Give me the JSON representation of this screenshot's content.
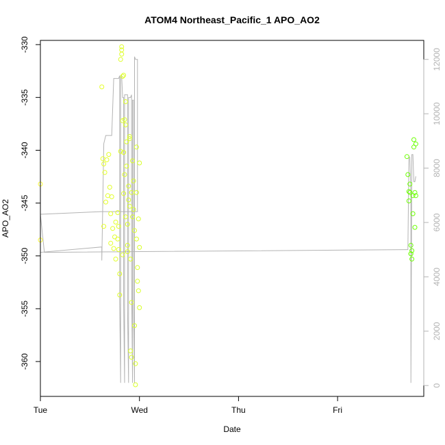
{
  "chart_data": {
    "type": "scatter",
    "title": "ATOM4 Northeast_Pacific_1 APO_AO2",
    "xlabel": "Date",
    "ylabel": "APO_AO2",
    "x_unit": "days since Tue 00:00",
    "xlim": [
      0.0,
      3.87
    ],
    "ylim": [
      -363.3,
      -329.6
    ],
    "x_ticks": [
      {
        "value": 0,
        "label": "Tue"
      },
      {
        "value": 1,
        "label": "Wed"
      },
      {
        "value": 2,
        "label": "Thu"
      },
      {
        "value": 3,
        "label": "Fri"
      }
    ],
    "y_ticks": [
      -360,
      -355,
      -350,
      -345,
      -340,
      -335,
      -330
    ],
    "y2_ticks": [
      0,
      2000,
      4000,
      6000,
      8000,
      10000,
      12000
    ],
    "y2lim": [
      -400,
      12700
    ],
    "colors": {
      "line": "#b3b3b3",
      "right_axis": "#b3b3b3",
      "point_low": "#ffff33",
      "point_high": "#66ff00"
    },
    "series": [
      {
        "kind": "points",
        "values": [
          [
            0.0,
            -343.2
          ],
          [
            0.0,
            -348.5
          ],
          [
            0.62,
            -334.0
          ],
          [
            0.63,
            -340.8
          ],
          [
            0.64,
            -341.3
          ],
          [
            0.64,
            -347.2
          ],
          [
            0.65,
            -342.1
          ],
          [
            0.66,
            -344.9
          ],
          [
            0.67,
            -340.9
          ],
          [
            0.68,
            -344.3
          ],
          [
            0.69,
            -340.4
          ],
          [
            0.7,
            -343.5
          ],
          [
            0.71,
            -346.0
          ],
          [
            0.71,
            -348.8
          ],
          [
            0.72,
            -344.4
          ],
          [
            0.73,
            -347.4
          ],
          [
            0.74,
            -349.3
          ],
          [
            0.75,
            -348.2
          ],
          [
            0.76,
            -346.8
          ],
          [
            0.76,
            -350.3
          ],
          [
            0.78,
            -345.9
          ],
          [
            0.78,
            -348.4
          ],
          [
            0.79,
            -349.4
          ],
          [
            0.8,
            -351.7
          ],
          [
            0.8,
            -353.7
          ],
          [
            0.81,
            -340.1
          ],
          [
            0.81,
            -331.4
          ],
          [
            0.82,
            -330.2
          ],
          [
            0.82,
            -330.5
          ],
          [
            0.82,
            -330.9
          ],
          [
            0.83,
            -333.0
          ],
          [
            0.83,
            -337.2
          ],
          [
            0.84,
            -340.2
          ],
          [
            0.84,
            -344.1
          ],
          [
            0.85,
            -337.1
          ],
          [
            0.85,
            -342.3
          ],
          [
            0.86,
            -346.3
          ],
          [
            0.86,
            -337.6
          ],
          [
            0.87,
            -339.2
          ],
          [
            0.87,
            -341.5
          ],
          [
            0.88,
            -347.0
          ],
          [
            0.88,
            -349.6
          ],
          [
            0.89,
            -343.4
          ],
          [
            0.89,
            -344.7
          ],
          [
            0.9,
            -338.9
          ],
          [
            0.9,
            -345.3
          ],
          [
            0.91,
            -350.3
          ],
          [
            0.91,
            -359.0
          ],
          [
            0.92,
            -354.4
          ],
          [
            0.93,
            -346.3
          ],
          [
            0.93,
            -341.0
          ],
          [
            0.94,
            -345.6
          ],
          [
            0.95,
            -347.6
          ],
          [
            0.95,
            -356.6
          ],
          [
            0.96,
            -360.2
          ],
          [
            0.96,
            -362.2
          ],
          [
            0.97,
            -348.4
          ],
          [
            0.97,
            -344.0
          ],
          [
            0.98,
            -351.1
          ],
          [
            0.98,
            -352.4
          ],
          [
            0.99,
            -353.3
          ],
          [
            1.0,
            -341.2
          ],
          [
            1.0,
            -354.9
          ],
          [
            1.0,
            -349.2
          ],
          [
            0.99,
            -346.5
          ],
          [
            0.9,
            -338.7
          ],
          [
            0.92,
            -344.0
          ],
          [
            0.86,
            -335.4
          ],
          [
            0.84,
            -332.9
          ],
          [
            0.94,
            -342.9
          ],
          [
            0.97,
            -339.7
          ],
          [
            0.88,
            -349.0
          ],
          [
            0.92,
            -359.6
          ],
          [
            0.79,
            -347.2
          ],
          [
            0.83,
            -349.9
          ],
          [
            3.7,
            -340.6
          ],
          [
            3.71,
            -342.3
          ],
          [
            3.72,
            -344.8
          ],
          [
            3.73,
            -343.2
          ],
          [
            3.73,
            -344.0
          ],
          [
            3.74,
            -349.0
          ],
          [
            3.74,
            -349.8
          ],
          [
            3.75,
            -350.3
          ],
          [
            3.75,
            -349.5
          ],
          [
            3.76,
            -346.0
          ],
          [
            3.76,
            -344.3
          ],
          [
            3.77,
            -339.7
          ],
          [
            3.77,
            -339.0
          ],
          [
            3.78,
            -347.3
          ],
          [
            3.78,
            -344.0
          ],
          [
            3.79,
            -339.4
          ],
          [
            3.79,
            -344.3
          ],
          [
            3.72,
            -343.9
          ],
          [
            3.74,
            -349.8
          ]
        ]
      },
      {
        "kind": "line",
        "axis": "right",
        "values": [
          [
            0.0,
            5900
          ],
          [
            0.0,
            4900
          ],
          [
            0.62,
            5100
          ],
          [
            0.62,
            4600
          ],
          [
            0.64,
            8900
          ],
          [
            0.66,
            9200
          ],
          [
            0.68,
            9200
          ],
          [
            0.7,
            9200
          ],
          [
            0.72,
            9200
          ],
          [
            0.74,
            11300
          ],
          [
            0.76,
            11300
          ],
          [
            0.77,
            11300
          ],
          [
            0.79,
            11300
          ],
          [
            0.8,
            11400
          ],
          [
            0.8,
            3100
          ],
          [
            0.81,
            100
          ],
          [
            0.81,
            11400
          ],
          [
            0.82,
            11400
          ],
          [
            0.83,
            10600
          ],
          [
            0.84,
            10600
          ],
          [
            0.84,
            3000
          ],
          [
            0.85,
            100
          ],
          [
            0.85,
            10700
          ],
          [
            0.86,
            10700
          ],
          [
            0.87,
            10700
          ],
          [
            0.88,
            10700
          ],
          [
            0.88,
            2800
          ],
          [
            0.89,
            100
          ],
          [
            0.89,
            10600
          ],
          [
            0.9,
            10600
          ],
          [
            0.91,
            10600
          ],
          [
            0.92,
            10700
          ],
          [
            0.92,
            4000
          ],
          [
            0.93,
            100
          ],
          [
            0.93,
            10500
          ],
          [
            0.94,
            10500
          ],
          [
            0.94,
            3000
          ],
          [
            0.95,
            100
          ],
          [
            0.95,
            12100
          ],
          [
            0.96,
            12000
          ],
          [
            0.97,
            12000
          ],
          [
            0.98,
            12000
          ],
          [
            0.98,
            6400
          ],
          [
            0.6,
            6400
          ],
          [
            0.62,
            6400
          ],
          [
            0.0,
            6300
          ],
          [
            0.04,
            4900
          ],
          [
            3.7,
            5000
          ],
          [
            3.71,
            5000
          ],
          [
            3.72,
            8400
          ],
          [
            3.73,
            8400
          ],
          [
            3.74,
            7000
          ],
          [
            3.74,
            100
          ],
          [
            3.75,
            8500
          ],
          [
            3.76,
            8500
          ],
          [
            3.77,
            7500
          ],
          [
            3.78,
            7500
          ],
          [
            3.79,
            7700
          ]
        ]
      }
    ]
  }
}
